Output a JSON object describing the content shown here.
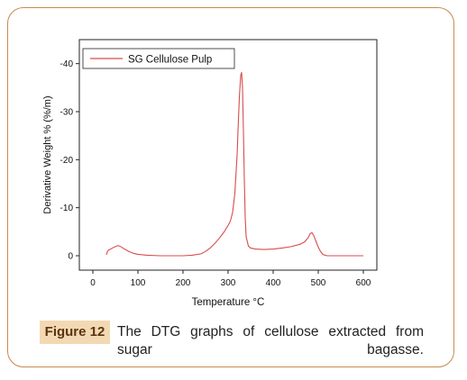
{
  "colors": {
    "frame": "#c8894e",
    "badge_bg": "#f3d9b3",
    "series": "#d84c4c"
  },
  "caption": {
    "figure_label": "Figure 12",
    "text": "The DTG graphs of cellulose extracted from sugar bagasse."
  },
  "chart_data": {
    "type": "line",
    "title": "",
    "xlabel": "Temperature °C",
    "ylabel": "Derivative Weight % (%/m)",
    "xlim": [
      -30,
      630
    ],
    "ylim": [
      3,
      -45
    ],
    "x_ticks": [
      0,
      100,
      200,
      300,
      400,
      500,
      600
    ],
    "y_ticks": [
      0,
      -10,
      -20,
      -30,
      -40
    ],
    "x_tick_labels": [
      "0",
      "100",
      "200",
      "300",
      "400",
      "500",
      "600"
    ],
    "y_tick_labels": [
      "0",
      "-10",
      "-20",
      "-30",
      "-40"
    ],
    "legend": "top-left",
    "grid": false,
    "series": [
      {
        "name": "SG Cellulose Pulp",
        "x": [
          30,
          32,
          35,
          40,
          45,
          50,
          55,
          60,
          65,
          70,
          80,
          90,
          100,
          120,
          150,
          180,
          200,
          220,
          240,
          250,
          260,
          270,
          280,
          290,
          300,
          305,
          310,
          315,
          320,
          322,
          325,
          328,
          330,
          332,
          334,
          336,
          338,
          340,
          345,
          350,
          360,
          380,
          400,
          420,
          440,
          460,
          470,
          478,
          482,
          486,
          490,
          495,
          500,
          505,
          510,
          515,
          520,
          550,
          580,
          600
        ],
        "y": [
          -0.2,
          -0.8,
          -1.2,
          -1.4,
          -1.7,
          -1.9,
          -2.1,
          -2.0,
          -1.7,
          -1.4,
          -0.9,
          -0.5,
          -0.3,
          -0.1,
          0,
          0,
          0,
          -0.1,
          -0.4,
          -0.9,
          -1.6,
          -2.5,
          -3.6,
          -4.8,
          -6.3,
          -7.2,
          -9,
          -13,
          -21,
          -26,
          -33,
          -37.5,
          -38.2,
          -35,
          -26,
          -16,
          -8,
          -4,
          -2,
          -1.6,
          -1.4,
          -1.3,
          -1.4,
          -1.6,
          -1.9,
          -2.4,
          -2.9,
          -3.8,
          -4.6,
          -4.8,
          -4.2,
          -3,
          -1.8,
          -0.9,
          -0.3,
          -0.1,
          0,
          0,
          0,
          0
        ]
      }
    ]
  }
}
